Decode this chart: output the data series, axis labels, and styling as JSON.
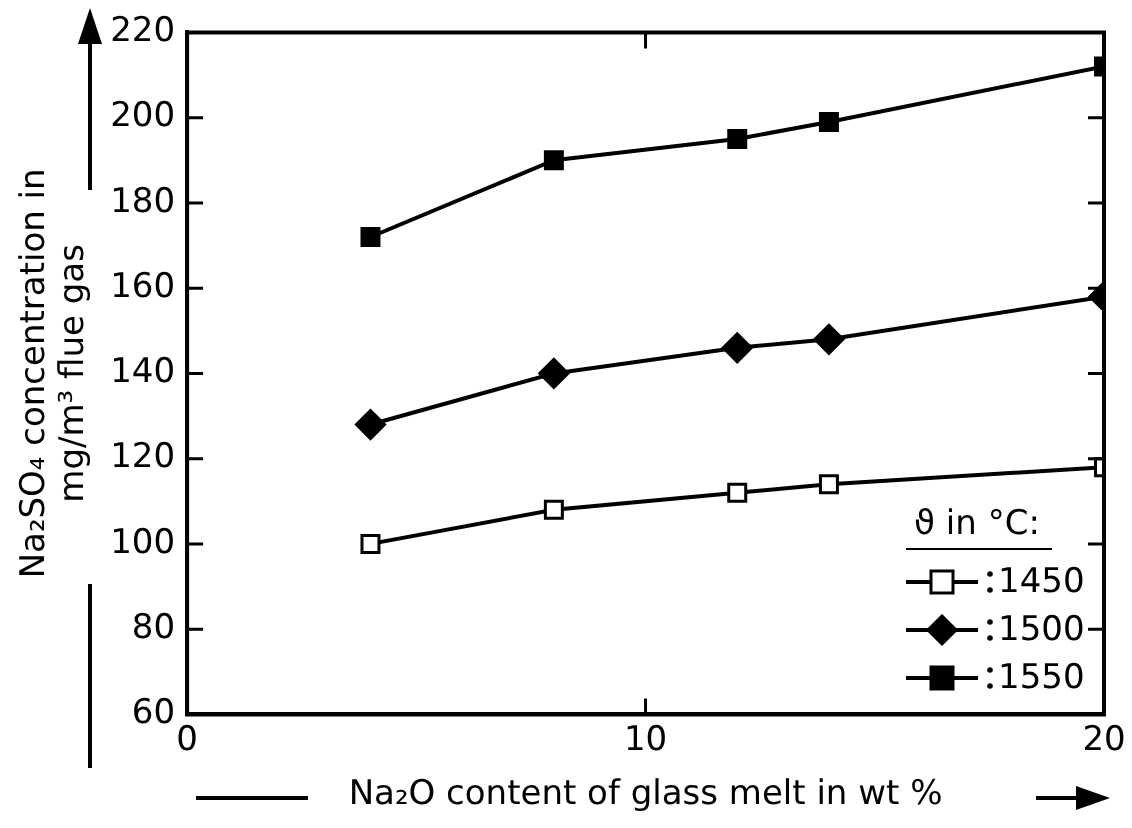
{
  "chart_data": {
    "type": "line",
    "xlabel": "Na₂O content of glass melt in wt %",
    "ylabel": "Na₂SO₄ concentration in mg/m³ flue gas",
    "legend_title": "ϑ in °C:",
    "x": [
      4,
      8,
      12,
      14,
      20
    ],
    "series": [
      {
        "name": "1450",
        "color": "#000000",
        "marker": "square-open",
        "values": [
          100,
          108,
          112,
          114,
          118
        ]
      },
      {
        "name": "1500",
        "color": "#000000",
        "marker": "diamond",
        "values": [
          128,
          140,
          146,
          148,
          158
        ]
      },
      {
        "name": "1550",
        "color": "#000000",
        "marker": "square",
        "values": [
          172,
          190,
          195,
          199,
          212
        ]
      }
    ],
    "xlim": [
      0,
      20
    ],
    "xticks": [
      0,
      10,
      20
    ],
    "ylim": [
      60,
      220
    ],
    "yticks": [
      60,
      80,
      100,
      120,
      140,
      160,
      180,
      200,
      220
    ],
    "grid": false,
    "legend": "bottom right",
    "line_style": "solid"
  }
}
